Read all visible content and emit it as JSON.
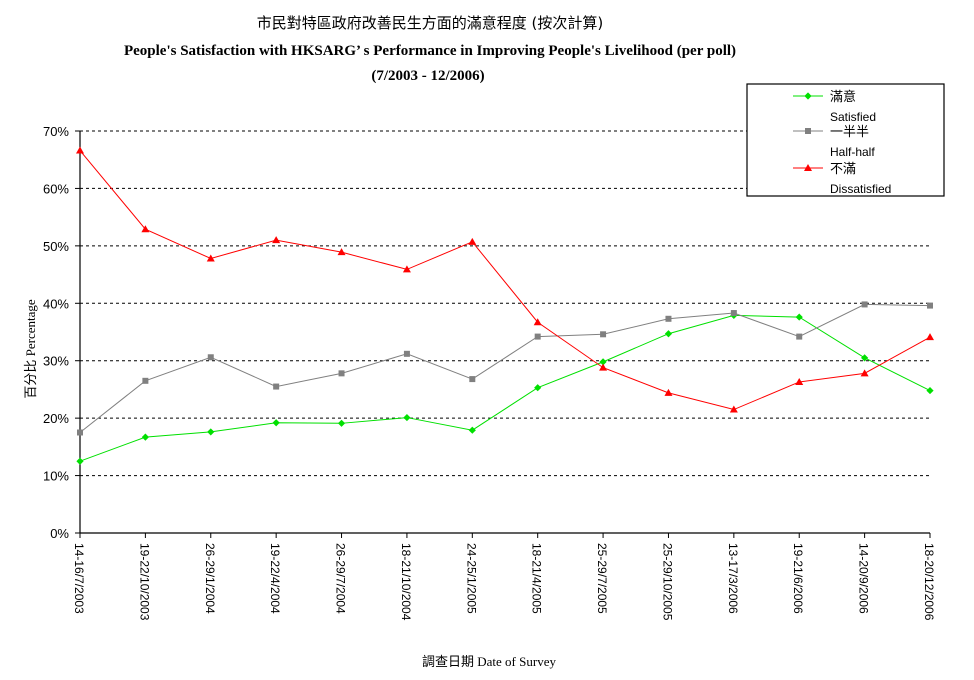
{
  "chart_data": {
    "type": "line",
    "title_zh": "市民對特區政府改善民生方面的滿意程度 (按次計算)",
    "title_en": "People's Satisfaction with HKSARG’ s Performance in Improving People's Livelihood (per poll)",
    "subtitle": "(7/2003 - 12/2006)",
    "ylabel": "百分比 Percentage",
    "xlabel": "調查日期 Date of Survey",
    "ylim": [
      0,
      70
    ],
    "yticks": [
      "0%",
      "10%",
      "20%",
      "30%",
      "40%",
      "50%",
      "60%",
      "70%"
    ],
    "grid": true,
    "legend_placement": "top-right",
    "categories": [
      "14-16/7/2003",
      "19-22/10/2003",
      "26-29/1/2004",
      "19-22/4/2004",
      "26-29/7/2004",
      "18-21/10/2004",
      "24-25/1/2005",
      "18-21/4/2005",
      "25-29/7/2005",
      "25-29/10/2005",
      "13-17/3/2006",
      "19-21/6/2006",
      "14-20/9/2006",
      "18-20/12/2006"
    ],
    "series": [
      {
        "name": "滿意",
        "name_en": "Satisfied",
        "color": "#00e000",
        "marker": "diamond",
        "values": [
          12.5,
          16.7,
          17.6,
          19.2,
          19.1,
          20.1,
          17.9,
          25.3,
          29.8,
          34.7,
          37.9,
          37.6,
          30.5,
          24.8
        ]
      },
      {
        "name": "一半半",
        "name_en": "Half-half",
        "color": "#808080",
        "marker": "square",
        "values": [
          17.5,
          26.5,
          30.6,
          25.5,
          27.8,
          31.2,
          26.8,
          34.2,
          34.6,
          37.3,
          38.3,
          34.2,
          39.8,
          39.6
        ]
      },
      {
        "name": "不滿",
        "name_en": "Dissatisfied",
        "color": "#ff0000",
        "marker": "triangle",
        "values": [
          66.6,
          52.9,
          47.8,
          51.0,
          48.9,
          45.9,
          50.7,
          36.7,
          28.8,
          24.4,
          21.5,
          26.3,
          27.8,
          34.1
        ]
      }
    ]
  }
}
